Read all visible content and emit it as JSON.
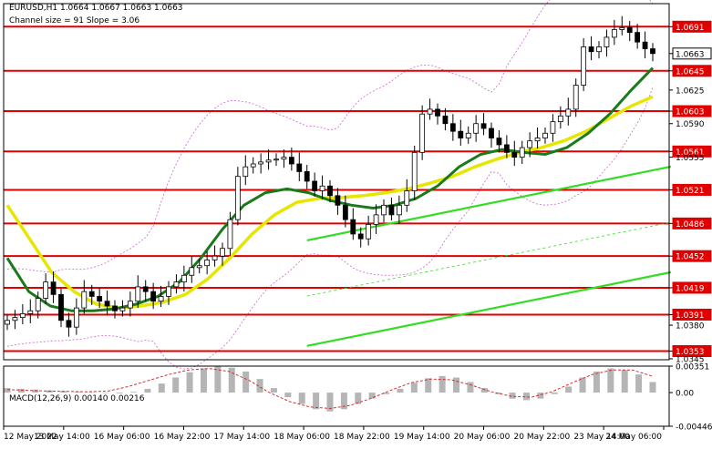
{
  "header": {
    "line1": "EURUSD,H1  1.0664 1.0667 1.0663 1.0663",
    "line2": "Channel size = 91 Slope = 3.06"
  },
  "macd_label": "MACD(12,26,9) 0.00140 0.00216",
  "colors": {
    "bull": "#000000",
    "bear": "#000000",
    "ma_fast": "#1a7a1a",
    "ma_slow": "#e6e600",
    "level": "#e00000",
    "channel": "#33dd22",
    "bands": "#cc66cc",
    "macd_hist": "#b5b5b5",
    "signal": "#d23030",
    "price_tag": "#e00000"
  },
  "chart_data": [
    {
      "type": "candlestick",
      "symbol": "EURUSD",
      "timeframe": "H1",
      "ylim": [
        1.0344,
        1.0715
      ],
      "y_ticks": [
        "1.0691",
        "1.0663",
        "1.0645",
        "1.0625",
        "1.0603",
        "1.0590",
        "1.0561",
        "1.0555",
        "1.0521",
        "1.0486",
        "1.0452",
        "1.0419",
        "1.0391",
        "1.0380",
        "1.0353",
        "1.0345"
      ],
      "levels": [
        1.0691,
        1.0645,
        1.0603,
        1.0561,
        1.0521,
        1.0486,
        1.0452,
        1.0419,
        1.0391,
        1.0353
      ],
      "level_labels": [
        "1.0691",
        "1.0645",
        "1.0603",
        "1.0561",
        "1.0521",
        "1.0486",
        "1.0452",
        "1.0419",
        "1.0391",
        "1.0353"
      ],
      "current_price": "1.0663",
      "x_labels": [
        "12 May 2022",
        "13 May 14:00",
        "16 May 06:00",
        "16 May 22:00",
        "17 May 14:00",
        "18 May 06:00",
        "18 May 22:00",
        "19 May 14:00",
        "20 May 06:00",
        "20 May 22:00",
        "23 May 14:00",
        "24 May 06:00"
      ],
      "series": [
        {
          "name": "close",
          "values": [
            1.0385,
            1.0388,
            1.0392,
            1.0395,
            1.0408,
            1.0425,
            1.0412,
            1.0385,
            1.0378,
            1.0398,
            1.0415,
            1.041,
            1.0405,
            1.04,
            1.0395,
            1.0398,
            1.0405,
            1.042,
            1.0415,
            1.0405,
            1.041,
            1.042,
            1.0425,
            1.0432,
            1.044,
            1.0442,
            1.0448,
            1.0452,
            1.046,
            1.049,
            1.0535,
            1.0545,
            1.0548,
            1.055,
            1.0552,
            1.0553,
            1.0555,
            1.0548,
            1.054,
            1.053,
            1.052,
            1.0525,
            1.0515,
            1.0505,
            1.049,
            1.0475,
            1.047,
            1.0485,
            1.0495,
            1.0505,
            1.0495,
            1.0505,
            1.052,
            1.056,
            1.06,
            1.0605,
            1.0598,
            1.059,
            1.0582,
            1.0575,
            1.058,
            1.059,
            1.0585,
            1.0575,
            1.0568,
            1.056,
            1.0555,
            1.0565,
            1.0572,
            1.0575,
            1.058,
            1.0592,
            1.0598,
            1.0605,
            1.063,
            1.067,
            1.0665,
            1.067,
            1.068,
            1.0688,
            1.069,
            1.0685,
            1.0675,
            1.0668,
            1.0663
          ]
        },
        {
          "name": "ma_fast",
          "values": [
            1.045,
            1.0415,
            1.04,
            1.0395,
            1.0395,
            1.0397,
            1.0402,
            1.041,
            1.0425,
            1.045,
            1.048,
            1.0505,
            1.0518,
            1.0522,
            1.0518,
            1.051,
            1.0505,
            1.0502,
            1.0505,
            1.0512,
            1.0525,
            1.0545,
            1.0558,
            1.0563,
            1.056,
            1.0558,
            1.0565,
            1.058,
            1.06,
            1.0625,
            1.0648
          ]
        },
        {
          "name": "ma_slow",
          "values": [
            1.0505,
            1.047,
            1.0435,
            1.0415,
            1.0402,
            1.0398,
            1.04,
            1.0404,
            1.0412,
            1.0428,
            1.045,
            1.0475,
            1.0495,
            1.0508,
            1.0512,
            1.0513,
            1.0515,
            1.0518,
            1.0522,
            1.0528,
            1.0535,
            1.0545,
            1.0553,
            1.056,
            1.0565,
            1.0572,
            1.0582,
            1.0595,
            1.0608,
            1.0618
          ]
        }
      ]
    },
    {
      "type": "bar",
      "title": "MACD(12,26,9) 0.00140 0.00216",
      "ylim": [
        -0.00446,
        0.00351
      ],
      "y_ticks": [
        "0.00351",
        "0.00",
        "-0.00446"
      ],
      "series": [
        {
          "name": "histogram",
          "values": [
            0.0006,
            0.0005,
            0.0004,
            0.0003,
            0.0002,
            0.0001,
            5e-05,
            0.0,
            -0.0001,
            0.0001,
            0.0005,
            0.0012,
            0.002,
            0.0027,
            0.0032,
            0.00345,
            0.0033,
            0.0028,
            0.0018,
            0.0006,
            -0.0006,
            -0.0015,
            -0.0022,
            -0.0025,
            -0.0022,
            -0.0015,
            -0.0008,
            -0.0002,
            0.0005,
            0.0013,
            0.0019,
            0.0022,
            0.002,
            0.0014,
            0.0006,
            -0.0002,
            -0.0008,
            -0.001,
            -0.0008,
            -0.0002,
            0.0008,
            0.002,
            0.0028,
            0.0032,
            0.003,
            0.0024,
            0.0014
          ]
        },
        {
          "name": "signal",
          "values": [
            0.0004,
            0.0003,
            0.0002,
            0.00015,
            0.0001,
            0.0002,
            0.0008,
            0.0016,
            0.0024,
            0.003,
            0.0032,
            0.0028,
            0.0016,
            0.0,
            -0.0012,
            -0.0019,
            -0.0021,
            -0.0017,
            -0.0008,
            0.0003,
            0.0013,
            0.0018,
            0.0017,
            0.001,
            0.0001,
            -0.0005,
            -0.0006,
            0.0001,
            0.0013,
            0.0024,
            0.003,
            0.003,
            0.00216
          ]
        }
      ]
    }
  ]
}
